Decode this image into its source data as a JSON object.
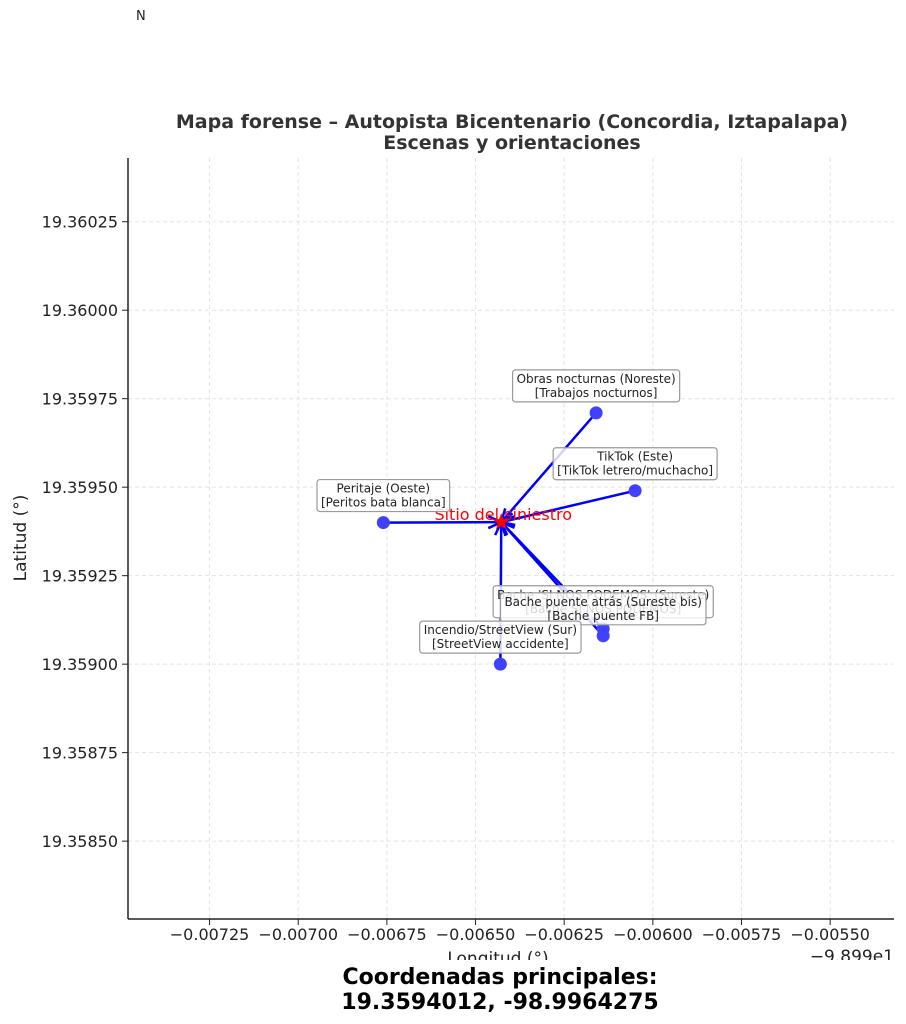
{
  "north_label": "N",
  "caption": {
    "line1": "Coordenadas principales:",
    "line2": "19.3594012, -98.9964275"
  },
  "chart_data": {
    "type": "scatter",
    "title": "Mapa forense – Autopista Bicentenario (Concordia, Iztapalapa)",
    "subtitle": "Escenas y orientaciones",
    "xlabel": "Longitud (°)",
    "ylabel": "Latitud (°)",
    "x_offset_label": "−9.899e1",
    "xlim": [
      -0.00748,
      -0.00532
    ],
    "ylim": [
      19.35828,
      19.36043
    ],
    "x_ticks": [
      -0.00725,
      -0.007,
      -0.00675,
      -0.0065,
      -0.00625,
      -0.006,
      -0.00575,
      -0.0055
    ],
    "x_tick_labels": [
      "−0.00725",
      "−0.00700",
      "−0.00675",
      "−0.00650",
      "−0.00625",
      "−0.00600",
      "−0.00575",
      "−0.00550"
    ],
    "y_ticks": [
      19.3585,
      19.35875,
      19.359,
      19.35925,
      19.3595,
      19.35975,
      19.36,
      19.36025
    ],
    "y_tick_labels": [
      "19.35850",
      "19.35875",
      "19.35900",
      "19.35925",
      "19.35950",
      "19.35975",
      "19.36000",
      "19.36025"
    ],
    "grid": true,
    "center": {
      "label": "Sitio del siniestro",
      "x": -0.0064275,
      "y": 19.3594012,
      "color": "#ff0000"
    },
    "arrow_color": "#0000ff",
    "point_color": "#4040ff",
    "points": [
      {
        "name": "Obras nocturnas (Noreste)",
        "tag": "[Trabajos nocturnos]",
        "x": -0.00616,
        "y": 19.35971
      },
      {
        "name": "TikTok (Este)",
        "tag": "[TikTok letrero/muchacho]",
        "x": -0.00605,
        "y": 19.35949
      },
      {
        "name": "Peritaje (Oeste)",
        "tag": "[Peritos bata blanca]",
        "x": -0.00676,
        "y": 19.3594
      },
      {
        "name": "Bache 'SI NOS PODEMOS' (Sureste)",
        "tag": "[Bache SI NOS PODEMOS]",
        "x": -0.00614,
        "y": 19.3591
      },
      {
        "name": "Bache puente atrás (Sureste bis)",
        "tag": "[Bache puente FB]",
        "x": -0.00614,
        "y": 19.35908
      },
      {
        "name": "Incendio/StreetView (Sur)",
        "tag": "[StreetView accidente]",
        "x": -0.00643,
        "y": 19.359
      }
    ]
  }
}
